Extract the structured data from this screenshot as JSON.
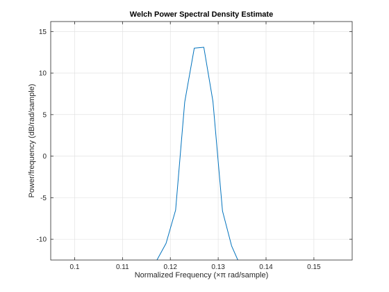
{
  "chart_data": {
    "type": "line",
    "title": "Welch Power Spectral Density Estimate",
    "xlabel": "Normalized Frequency  (×π rad/sample)",
    "ylabel": "Power/frequency (dB/rad/sample)",
    "xlim": [
      0.095,
      0.158
    ],
    "ylim": [
      -12.5,
      16.2
    ],
    "xticks": [
      0.1,
      0.11,
      0.12,
      0.13,
      0.14,
      0.15
    ],
    "xtick_labels": [
      "0.1",
      "0.11",
      "0.12",
      "0.13",
      "0.14",
      "0.15"
    ],
    "yticks": [
      -10,
      -5,
      0,
      5,
      10,
      15
    ],
    "ytick_labels": [
      "-10",
      "-5",
      "0",
      "5",
      "10",
      "15"
    ],
    "grid": true,
    "series": [
      {
        "color": "#0072BD",
        "x": [
          0.1172,
          0.1191,
          0.1211,
          0.123,
          0.125,
          0.127,
          0.1289,
          0.1309,
          0.1328,
          0.1341
        ],
        "y": [
          -12.5,
          -10.5,
          -6.5,
          6.5,
          13.0,
          13.1,
          6.6,
          -6.6,
          -10.8,
          -12.5
        ]
      }
    ],
    "colors": {
      "line": "#0072BD",
      "grid": "#dedede",
      "axes": "#262626",
      "background": "#ffffff"
    }
  }
}
